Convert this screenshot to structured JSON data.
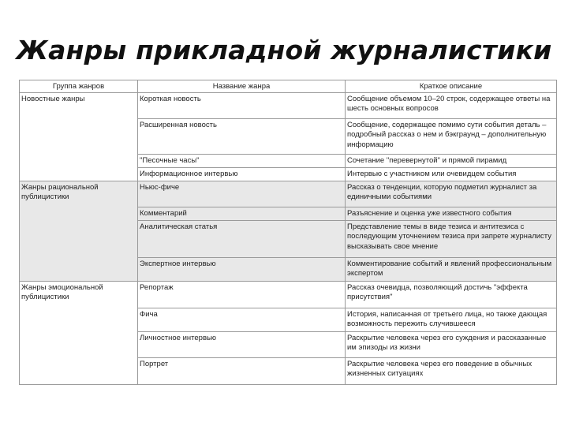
{
  "title": "Жанры прикладной журналистики",
  "headers": [
    "Группа жанров",
    "Название жанра",
    "Краткое описание"
  ],
  "groups": [
    {
      "name": "Новостные жанры",
      "rows": [
        {
          "genre": "Короткая новость",
          "desc": "Сообщение объемом 10–20 строк, содержащее ответы на шесть основных вопросов"
        },
        {
          "genre": "Расширенная новость",
          "desc": "Сообщение, содержащее помимо сути события деталь – подробный рассказ о нем и бэкграунд – дополнительную информацию"
        },
        {
          "genre": "\"Песочные часы\"",
          "desc": "Сочетание \"перевернутой\" и прямой пирамид"
        },
        {
          "genre": "Информационное интервью",
          "desc": "Интервью с участником или очевидцем события"
        }
      ]
    },
    {
      "name": "Жанры рациональной публицистики",
      "rows": [
        {
          "genre": "Ньюс-фиче",
          "desc": "Рассказ о тенденции, которую подметил журналист за единичными событиями"
        },
        {
          "genre": "Комментарий",
          "desc": "Разъяснение и оценка уже известного события"
        },
        {
          "genre": "Аналитическая статья",
          "desc": "Представление темы в виде тезиса и антитезиса с последующим уточнением тезиса при запрете журналисту высказывать свое мнение"
        },
        {
          "genre": "Экспертное интервью",
          "desc": "Комментирование событий и явлений профессиональным экспертом"
        }
      ]
    },
    {
      "name": "Жанры эмоциональной публицистики",
      "rows": [
        {
          "genre": "Репортаж",
          "desc": "Рассказ очевидца, позволяющий достичь \"эффекта присутствия\""
        },
        {
          "genre": "Фича",
          "desc": "История, написанная от третьего лица, но также дающая возможность пережить случившееся"
        },
        {
          "genre": "Личностное интервью",
          "desc": "Раскрытие человека через его суждения и рассказанные им эпизоды из жизни"
        },
        {
          "genre": "Портрет",
          "desc": "Раскрытие человека через его поведение в обычных жизненных ситуациях"
        }
      ]
    }
  ],
  "colors": {
    "shaded_row": "#e8e8e8",
    "border": "#9a9a9a"
  }
}
